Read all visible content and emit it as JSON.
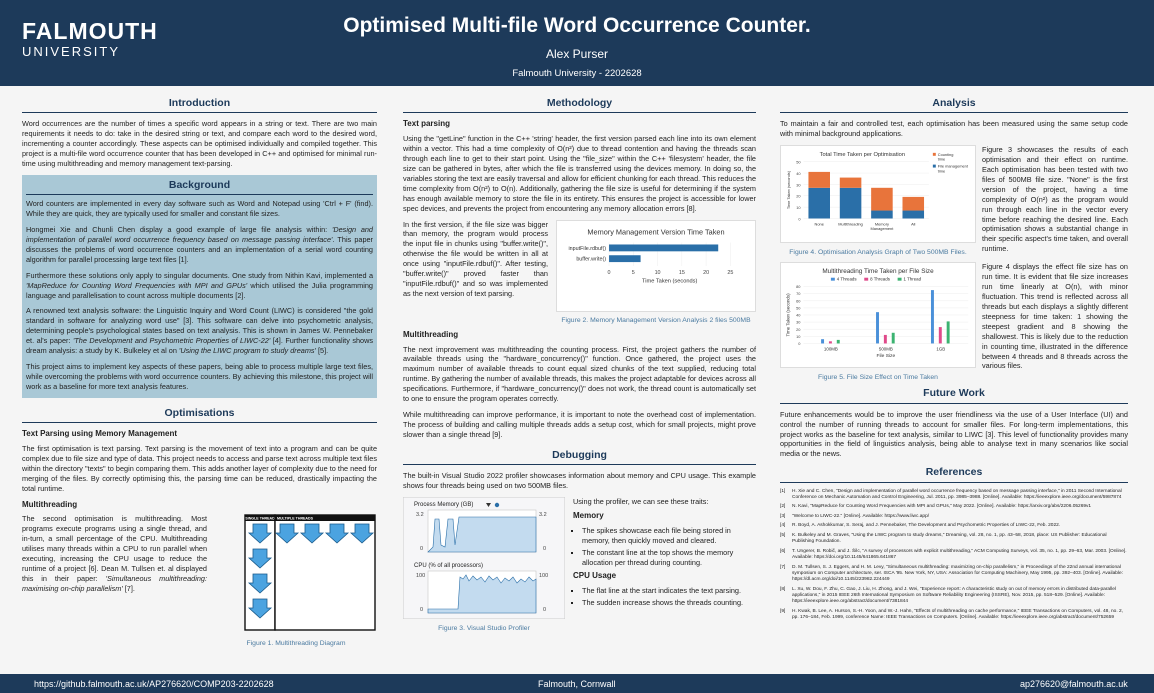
{
  "header": {
    "logo_line1": "FALMOUTH",
    "logo_line2": "UNIVERSITY",
    "title": "Optimised Multi-file Word Occurrence Counter.",
    "author": "Alex Purser",
    "affiliation": "Falmouth University - 2202628"
  },
  "footer": {
    "left": "https://github.falmouth.ac.uk/AP276620/COMP203-2202628",
    "center": "Falmouth, Cornwall",
    "right": "ap276620@falmouth.ac.uk"
  },
  "introduction": {
    "heading": "Introduction",
    "text": "Word occurrences are the number of times a specific word appears in a string or text. There are two main requirements it needs to do: take in the desired string or text, and compare each word to the desired word, incrementing a counter accordingly. These aspects can be optimised individually and compiled together. This project is a multi-file word occurrence counter that has been developed in C++ and optimised for minimal run-time using multithreading and memory management text-parsing."
  },
  "background": {
    "heading": "Background",
    "p1": "Word counters are implemented in every day software such as Word and Notepad using 'Ctrl + F' (find). While they are quick, they are typically used for smaller and constant file sizes.",
    "p2_a": "Hongmei Xie and Chunli Chen display a good example of large file analysis within: ",
    "p2_em": "'Design and implementation of parallel word occurrence frequency based on message passing interface'",
    "p2_b": ". This paper discusses the problems of word occurrence counters and an implementation of a serial word counting algorithm for parallel processing large text files [1].",
    "p3_a": "Furthermore these solutions only apply to singular documents. One study from Nithin Kavi, implemented a ",
    "p3_em": "'MapReduce for Counting Word Frequencies with MPI and GPUs'",
    "p3_b": " which utilised the Julia programming language and parallelisation to count across multiple documents [2].",
    "p4_a": "A renowned text analysis software: the Linguistic Inquiry and Word Count (LIWC) is considered \"the gold standard in software for analyzing word use\" [3]. This software can delve into psychometric analysis, determining people's psychological states based on text analysis. This is shown in James W. Pennebaker et. al's paper: ",
    "p4_em": "'The Development and Psychometric Properties of LIWC-22'",
    "p4_b": " [4]. Further functionality shows dream analysis: a study by K. Bulkeley et al on ",
    "p4_em2": "'Using the LIWC program to study dreams'",
    "p4_c": " [5].",
    "p5": "This project aims to implement key aspects of these papers, being able to process multiple large text files, while overcoming the problems with word occurrence counters. By achieving this milestone, this project will work as a baseline for more text analysis features."
  },
  "optimisations": {
    "heading": "Optimisations",
    "sub1": "Text Parsing using Memory Management",
    "p1": "The first optimisation is text parsing. Text parsing is the movement of text into a program and can be quite complex due to file size and type of data. This project needs to access and parse text across multiple text files within the directory \"texts\" to begin comparing them. This adds another layer of complexity due to the need for merging of the files. By correctly optimising this, the parsing time can be reduced, drastically impacting the total runtime.",
    "sub2": "Multithreading",
    "p2_a": "The second optimisation is multithreading. Most programs execute programs using a single thread, and in-turn, a small percentage of the CPU. Multithreading utilises many threads within a CPU to run parallel when executing, increasing the CPU usage to reduce the runtime of a project [6]. Dean M. Tullsen et. al displayed this in their paper: ",
    "p2_em": "'Simultaneous multithreading: maximising on-chip parallelism'",
    "p2_b": " [7].",
    "fig1_single": "SINGLE THREAD",
    "fig1_multi": "MULTIPLE THREADS",
    "fig1_caption": "Figure 1. Multithreading Diagram"
  },
  "methodology": {
    "heading": "Methodology",
    "sub1": "Text parsing",
    "p1": "Using the \"getLine\" function in the C++ 'string' header, the first version parsed each line into its own element within a vector. This had a time complexity of O(n²) due to thread contention and having the threads scan through each line to get to their start point. Using the \"file_size\" within the C++ 'filesystem' header, the file size can be gathered in bytes, after which the file is transferred using the devices memory. In doing so, the variables storing the text are easily traversal and allow for efficient chunking for each thread. This reduces the time complexity from O(n²) to O(n). Additionally, gathering the file size is useful for determining if the system has enough available memory to store the file in its entirety. This ensures the project is accessible for lower spec devices, and prevents the project from encountering any memory allocation errors [8].",
    "p2": "In the first version, if the file size was bigger than memory, the program would process the input file in chunks using \"buffer.write()\", otherwise the file would be written in all at once using \"inputFile.rdbuf()\". After testing, \"buffer.write()\" proved faster than \"inputFile.rdbuf()\" and so was implemented as the next version of text parsing.",
    "sub2": "Multithreading",
    "p3": "The next improvement was multithreading the counting process. First, the project gathers the number of available threads using the \"hardware_concurrency()\" function. Once gathered, the project uses the maximum number of available threads to count equal sized chunks of the text supplied, reducing total runtime. By gathering the number of available threads, this makes the project adaptable for devices across all specifications. Furthermore, if \"hardware_concurrency()\" does not work, the thread count is automatically set to one to ensure the program operates correctly.",
    "p4": "While multithreading can improve performance, it is important to note the overhead cost of implementation. The process of building and calling multiple threads adds a setup cost, which for small projects, might prove slower than a single thread [9].",
    "fig2_caption": "Figure 2. Memory Management Version Analysis 2 files 500MB"
  },
  "debugging": {
    "heading": "Debugging",
    "p1": "The built-in Visual Studio 2022 profiler showcases information about memory and CPU usage. This example shows four threads being used on two 500MB files.",
    "intro": "Using the profiler, we can see these traits:",
    "memory_h": "Memory",
    "memory_items": [
      "The spikes showcase each file being stored in memory, then quickly moved and cleared.",
      "The constant line at the top shows the memory allocation per thread during counting."
    ],
    "cpu_h": "CPU Usage",
    "cpu_items": [
      "The flat line at the start indicates the text parsing.",
      "The sudden increase shows the threads counting."
    ],
    "prof_mem_label": "Process Memory (GB)",
    "prof_mem_max": "3.2",
    "prof_mem_min": "0",
    "prof_cpu_label": "CPU (% of all processors)",
    "prof_cpu_max": "100",
    "prof_cpu_min": "0",
    "fig3_caption": "Figure 3. Visual Studio Profiler"
  },
  "analysis": {
    "heading": "Analysis",
    "p1": "To maintain a fair and controlled test, each optimisation has been measured using the same setup code with minimal background applications.",
    "p2": "Figure 3 showcases the results of each optimisation and their effect on runtime. Each optimisation has been tested with two files of 500MB file size. \"None\" is the first version of the project, having a time complexity of O(n²) as the program would run through each line in the vector every time before reaching the desired line. Each optimisation shows a substantial change in their specific aspect's time taken, and overall runtime.",
    "fig4_caption": "Figure 4. Optimisation Analysis Graph of Two 500MB Files.",
    "p3": "Figure 4 displays the effect file size has on run time. It is evident that file size increases run time linearly at O(n), with minor fluctuation. This trend is reflected across all threads but each displays a slightly different steepness for time taken: 1 showing the steepest gradient and 8 showing the shallowest. This is likely due to the reduction in counting time, illustrated in the difference between 4 threads and 8 threads across the various files.",
    "fig5_caption": "Figure 5. File Size Effect on Time Taken"
  },
  "future_work": {
    "heading": "Future Work",
    "text": "Future enhancements would be to improve the user friendliness via the use of a User Interface (UI) and control the number of running threads to account for smaller files. For long-term implementations, this project works as the baseline for text analysis, similar to LIWC [3]. This level of functionality provides many opportunities in the field of linguistics analysis, being able to analyse text in many scenarios like social media or the news."
  },
  "references": {
    "heading": "References",
    "items": [
      {
        "n": "[1]",
        "t": "H. Xie and C. Chen, \"Design and implementation of parallel word occurrence frequency based on message passing interface,\" in 2011 Second International Conference on Mechanic Automation and Control Engineering, Jul. 2011, pp. 3985–3988. [Online]. Available: https://ieeexplore.ieee.org/document/5987874"
      },
      {
        "n": "[2]",
        "t": "N. Kavi, \"MapReduce for Counting Word Frequencies with MPI and GPUs,\" May 2022. [Online]. Available: https://arxiv.org/abs/2206.05269v1"
      },
      {
        "n": "[3]",
        "t": "\"Welcome to LIWC-22.\" [Online]. Available: https://www.liwc.app/"
      },
      {
        "n": "[4]",
        "t": "R. Boyd, A. Ashokkumar, S. Seraj, and J. Pennebaker, The Development and Psychometric Properties of LIWC-22, Feb. 2022."
      },
      {
        "n": "[5]",
        "t": "K. Bulkeley and M. Graves, \"Using the LIWC program to study dreams,\" Dreaming, vol. 28, no. 1, pp. 43–58, 2018, place: US Publisher: Educational Publishing Foundation."
      },
      {
        "n": "[6]",
        "t": "T. Ungerer, B. Robič, and J. Šilc, \"A survey of processors with explicit multithreading,\" ACM Computing Surveys, vol. 35, no. 1, pp. 29–63, Mar. 2003. [Online]. Available: https://doi.org/10.1145/641865.641867"
      },
      {
        "n": "[7]",
        "t": "D. M. Tullsen, S. J. Eggers, and H. M. Levy, \"Simultaneous multithreading: maximizing on-chip parallelism,\" in Proceedings of the 22nd annual international symposium on Computer architecture, ser. ISCA '95. New York, NY, USA: Association for Computing Machinery, May 1995, pp. 392–403. [Online]. Available: https://dl.acm.org/doi/10.1145/223982.224449"
      },
      {
        "n": "[8]",
        "t": "L. Xu, W. Dou, F. Zhu, C. Gao, J. Liu, H. Zhong, and J. Wei, \"Experience report: A characteristic study on out of memory errors in distributed data-parallel applications,\" in 2015 IEEE 26th International Symposium on Software Reliability Engineering (ISSRE), Nov. 2015, pp. 518–529. [Online]. Available: https://ieeexplore.ieee.org/abstract/document/7381844"
      },
      {
        "n": "[9]",
        "t": "H. Kwak, B. Lee, A. Hurson, S.-H. Yoon, and W.-J. Hahn, \"Effects of multithreading on cache performance,\" IEEE Transactions on Computers, vol. 48, no. 2, pp. 176–184, Feb. 1999, conference Name: IEEE Transactions on Computers. [Online]. Available: https://ieeexplore.ieee.org/abstract/document/752659"
      }
    ]
  },
  "colors": {
    "navy": "#1d3a5a",
    "bg_box": "#a9c8d6",
    "orange": "#e8743b",
    "blue": "#2a6fa8"
  },
  "chart_data": [
    {
      "type": "bar",
      "title": "Memory Management Version Time Taken",
      "orientation": "horizontal",
      "categories": [
        "inputFile.rdbuf()",
        "buffer.write()"
      ],
      "values": [
        22.5,
        6.5
      ],
      "xlabel": "Time Taken (seconds)",
      "xlim": [
        0,
        25
      ],
      "xticks": [
        "0",
        "5",
        "10",
        "15",
        "20",
        "25"
      ],
      "color": "#2a6fa8"
    },
    {
      "type": "bar",
      "stacked": true,
      "title": "Total Time Taken per Optimisation",
      "categories": [
        "None",
        "Multithreading",
        "Memory Management",
        "All"
      ],
      "ylabel": "Time Taken (seconds)",
      "ylim": [
        0,
        50
      ],
      "yticks": [
        "0",
        "10",
        "20",
        "30",
        "40",
        "50"
      ],
      "series": [
        {
          "name": "File management time",
          "values": [
            27,
            27,
            7,
            7
          ],
          "color": "#2a6fa8"
        },
        {
          "name": "Counting time",
          "values": [
            14,
            9,
            20,
            12
          ],
          "color": "#e8743b"
        }
      ]
    },
    {
      "type": "bar",
      "title": "Multithreading Time Taken per File Size",
      "categories": [
        "100MB",
        "500MB",
        "1GB"
      ],
      "xlabel": "File Size",
      "ylabel": "Time Taken (seconds)",
      "ylim": [
        0,
        80
      ],
      "yticks": [
        "0",
        "10",
        "20",
        "30",
        "40",
        "50",
        "60",
        "70",
        "80"
      ],
      "series": [
        {
          "name": "4 Threads",
          "values": [
            6,
            44,
            75
          ],
          "color": "#4a90d9"
        },
        {
          "name": "8 Threads",
          "values": [
            3,
            12,
            23
          ],
          "color": "#e04a8a"
        },
        {
          "name": "1 Thread",
          "values": [
            5,
            15,
            31
          ],
          "color": "#3cb371"
        }
      ]
    }
  ]
}
